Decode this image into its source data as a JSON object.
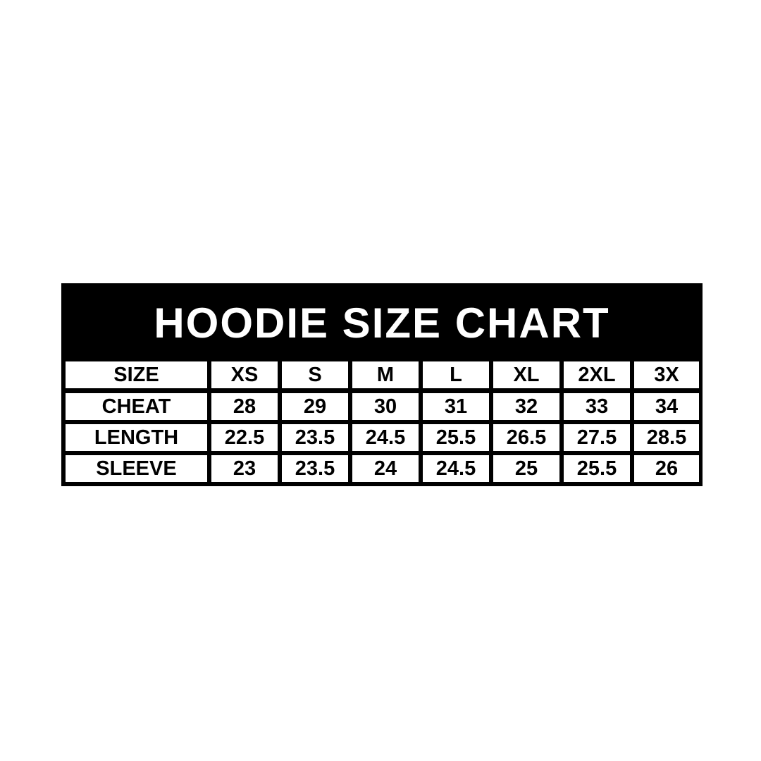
{
  "title": "HOODIE SIZE CHART",
  "colors": {
    "background": "#000000",
    "cell": "#ffffff",
    "text_on_dark": "#ffffff",
    "text_on_light": "#000000"
  },
  "rows": [
    {
      "label": "SIZE",
      "values": [
        "XS",
        "S",
        "M",
        "L",
        "XL",
        "2XL",
        "3X"
      ]
    },
    {
      "label": "CHEAT",
      "values": [
        "28",
        "29",
        "30",
        "31",
        "32",
        "33",
        "34"
      ]
    },
    {
      "label": "LENGTH",
      "values": [
        "22.5",
        "23.5",
        "24.5",
        "25.5",
        "26.5",
        "27.5",
        "28.5"
      ]
    },
    {
      "label": "SLEEVE",
      "values": [
        "23",
        "23.5",
        "24",
        "24.5",
        "25",
        "25.5",
        "26"
      ]
    }
  ]
}
